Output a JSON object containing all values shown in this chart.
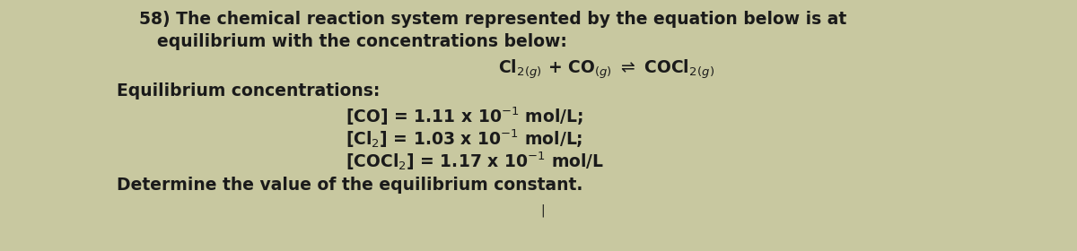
{
  "background_color": "#c8c8a0",
  "text_color": "#1a1a1a",
  "figsize": [
    12.0,
    2.8
  ],
  "dpi": 100,
  "line1": "58) The chemical reaction system represented by the equation below is at",
  "line2": "equilibrium with the concentrations below:",
  "line3": "Cl$_2$$_{(g)}$ + CO$_{(g)}$ $\\rightleftharpoons$ COCl$_2$$_{(g)}$",
  "line4": "Equilibrium concentrations:",
  "line5": "[CO] = 1.11 x 10$^{-1}$ mol/L;",
  "line6": "[Cl$_2$] = 1.03 x 10$^{-1}$ mol/L;",
  "line7": "[COCl$_2$] = 1.17 x 10$^{-1}$ mol/L",
  "line8": "Determine the value of the equilibrium constant.",
  "font_size": 13.5,
  "bold": true
}
